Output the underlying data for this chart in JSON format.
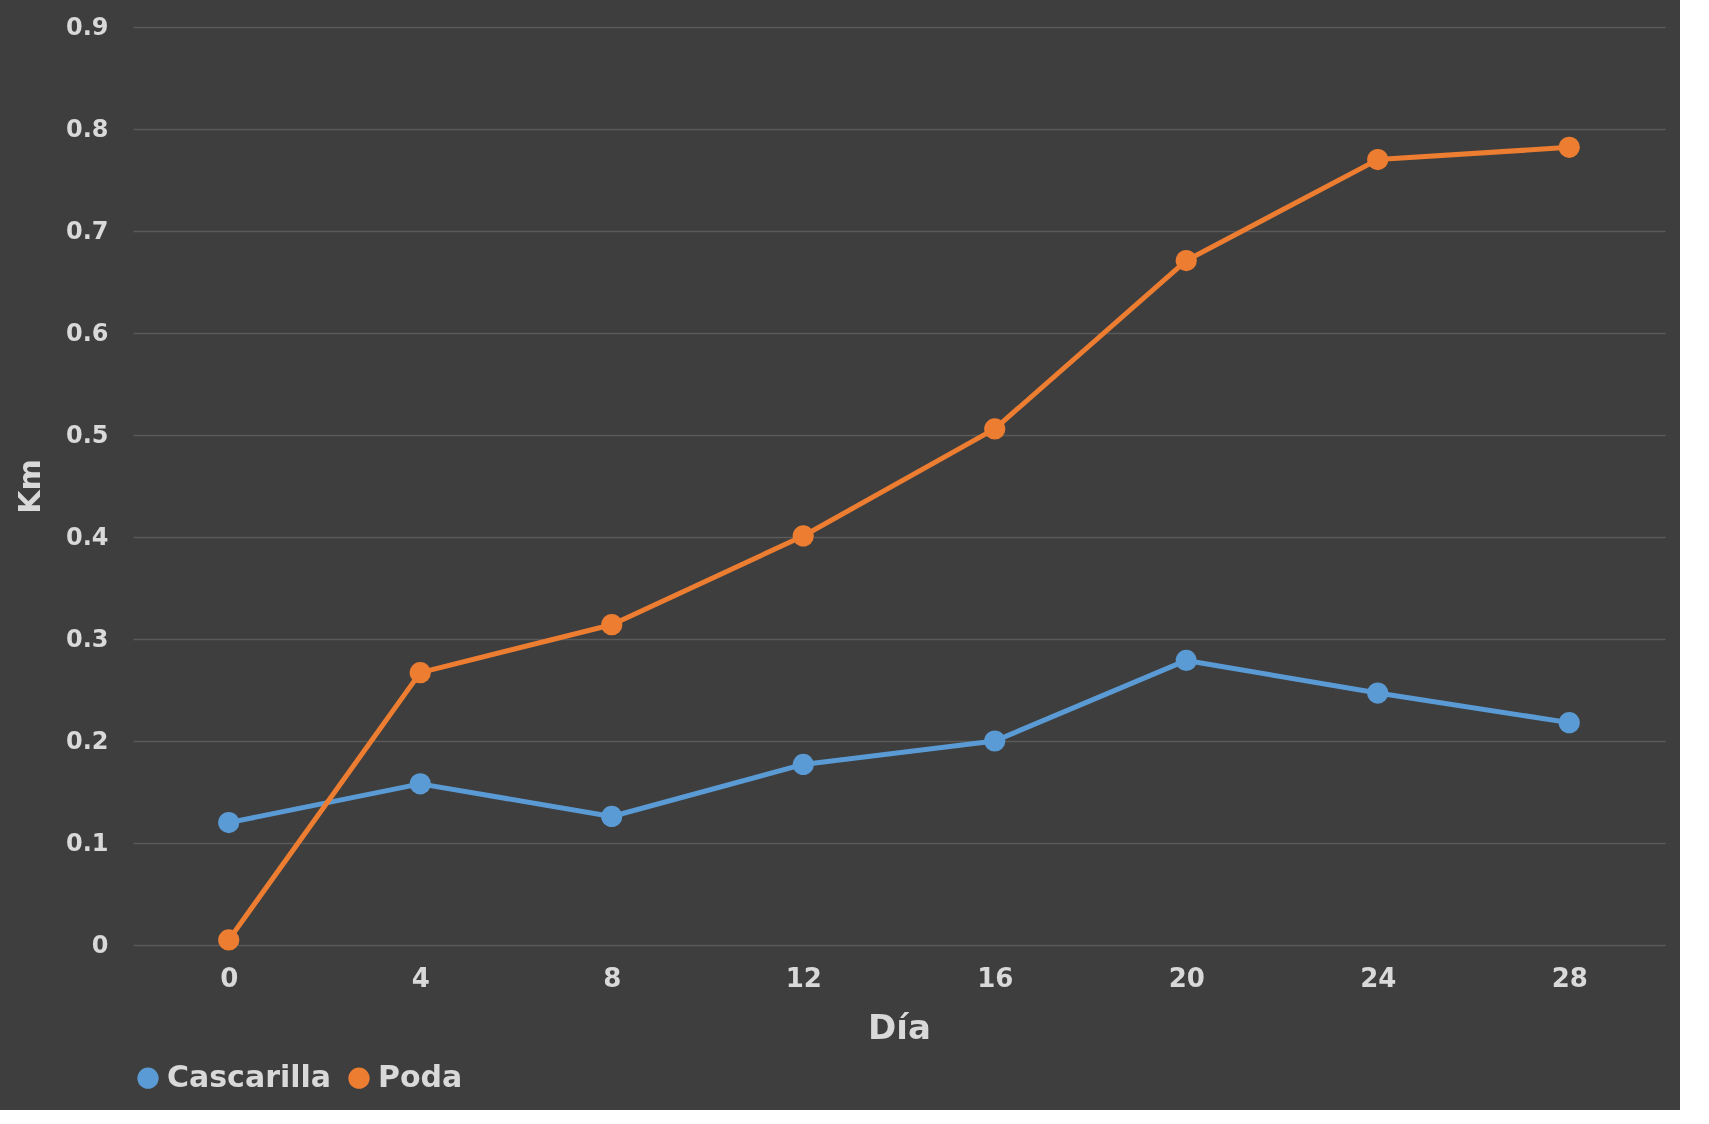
{
  "chart_data": {
    "type": "line",
    "xlabel": "Día",
    "ylabel": "Km",
    "categories": [
      "0",
      "4",
      "8",
      "12",
      "16",
      "20",
      "24",
      "28"
    ],
    "series": [
      {
        "name": "Cascarilla",
        "color": "#5b9bd5",
        "values": [
          0.12,
          0.158,
          0.126,
          0.177,
          0.2,
          0.279,
          0.247,
          0.218
        ]
      },
      {
        "name": "Poda",
        "color": "#ed7d31",
        "values": [
          0.005,
          0.267,
          0.314,
          0.401,
          0.506,
          0.671,
          0.77,
          0.782
        ]
      }
    ],
    "ylim": [
      0,
      0.9
    ],
    "yticks": [
      0,
      0.1,
      0.2,
      0.3,
      0.4,
      0.5,
      0.6,
      0.7,
      0.8,
      0.9
    ],
    "grid": "y",
    "legend": "bottom",
    "marker": "circle",
    "line_style": "solid"
  }
}
